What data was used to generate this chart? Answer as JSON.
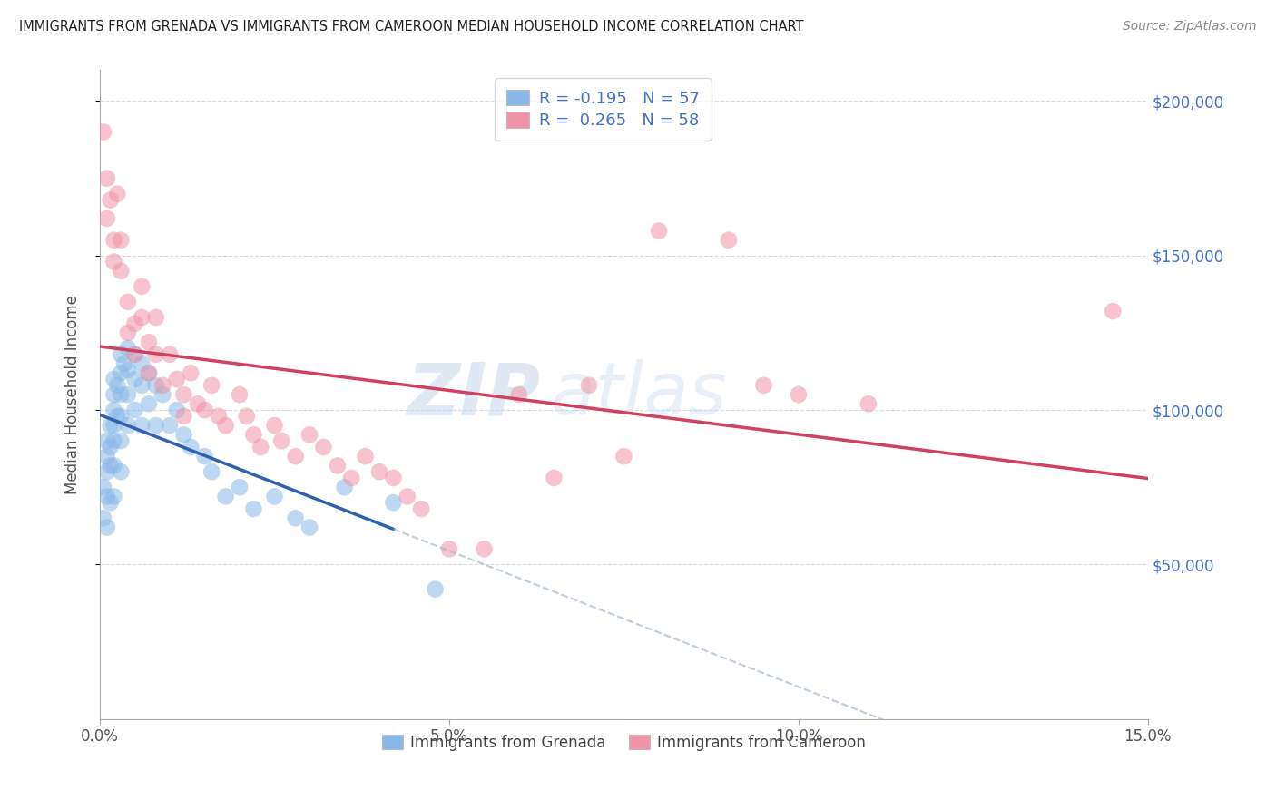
{
  "title": "IMMIGRANTS FROM GRENADA VS IMMIGRANTS FROM CAMEROON MEDIAN HOUSEHOLD INCOME CORRELATION CHART",
  "source": "Source: ZipAtlas.com",
  "ylabel": "Median Household Income",
  "xlim": [
    0,
    0.15
  ],
  "ylim": [
    0,
    210000
  ],
  "xticks": [
    0.0,
    0.05,
    0.1,
    0.15
  ],
  "xticklabels": [
    "0.0%",
    "5.0%",
    "10.0%",
    "15.0%"
  ],
  "yticks": [
    50000,
    100000,
    150000,
    200000
  ],
  "yticklabels": [
    "$50,000",
    "$100,000",
    "$150,000",
    "$200,000"
  ],
  "grenada_color": "#89b8e8",
  "cameroon_color": "#f093a8",
  "grenada_line_color": "#3060b0",
  "cameroon_line_color": "#d04060",
  "grenada_R": -0.195,
  "grenada_N": 57,
  "cameroon_R": 0.265,
  "cameroon_N": 58,
  "background_color": "#ffffff",
  "grid_color": "#cccccc",
  "title_color": "#222222",
  "axis_label_color": "#555555",
  "right_ytick_color": "#4472c4",
  "legend_R_color": "#4472c4",
  "watermark_color": "#c8d8ea",
  "grenada_x": [
    0.0005,
    0.0005,
    0.001,
    0.001,
    0.001,
    0.001,
    0.001,
    0.0015,
    0.0015,
    0.0015,
    0.0015,
    0.002,
    0.002,
    0.002,
    0.002,
    0.002,
    0.002,
    0.002,
    0.0025,
    0.0025,
    0.003,
    0.003,
    0.003,
    0.003,
    0.003,
    0.003,
    0.0035,
    0.004,
    0.004,
    0.004,
    0.004,
    0.005,
    0.005,
    0.005,
    0.006,
    0.006,
    0.006,
    0.007,
    0.007,
    0.008,
    0.008,
    0.009,
    0.01,
    0.011,
    0.012,
    0.013,
    0.015,
    0.016,
    0.018,
    0.02,
    0.022,
    0.025,
    0.028,
    0.03,
    0.035,
    0.042,
    0.048
  ],
  "grenada_y": [
    75000,
    65000,
    90000,
    85000,
    80000,
    72000,
    62000,
    95000,
    88000,
    82000,
    70000,
    110000,
    105000,
    100000,
    95000,
    90000,
    82000,
    72000,
    108000,
    98000,
    118000,
    112000,
    105000,
    98000,
    90000,
    80000,
    115000,
    120000,
    113000,
    105000,
    95000,
    118000,
    110000,
    100000,
    115000,
    108000,
    95000,
    112000,
    102000,
    108000,
    95000,
    105000,
    95000,
    100000,
    92000,
    88000,
    85000,
    80000,
    72000,
    75000,
    68000,
    72000,
    65000,
    62000,
    75000,
    70000,
    42000
  ],
  "cameroon_x": [
    0.0005,
    0.001,
    0.001,
    0.0015,
    0.002,
    0.002,
    0.0025,
    0.003,
    0.003,
    0.004,
    0.004,
    0.005,
    0.005,
    0.006,
    0.006,
    0.007,
    0.007,
    0.008,
    0.008,
    0.009,
    0.01,
    0.011,
    0.012,
    0.012,
    0.013,
    0.014,
    0.015,
    0.016,
    0.017,
    0.018,
    0.02,
    0.021,
    0.022,
    0.023,
    0.025,
    0.026,
    0.028,
    0.03,
    0.032,
    0.034,
    0.036,
    0.038,
    0.04,
    0.042,
    0.044,
    0.046,
    0.05,
    0.055,
    0.06,
    0.065,
    0.07,
    0.075,
    0.08,
    0.09,
    0.095,
    0.1,
    0.11,
    0.145
  ],
  "cameroon_y": [
    190000,
    175000,
    162000,
    168000,
    155000,
    148000,
    170000,
    155000,
    145000,
    135000,
    125000,
    128000,
    118000,
    140000,
    130000,
    122000,
    112000,
    130000,
    118000,
    108000,
    118000,
    110000,
    105000,
    98000,
    112000,
    102000,
    100000,
    108000,
    98000,
    95000,
    105000,
    98000,
    92000,
    88000,
    95000,
    90000,
    85000,
    92000,
    88000,
    82000,
    78000,
    85000,
    80000,
    78000,
    72000,
    68000,
    55000,
    55000,
    105000,
    78000,
    108000,
    85000,
    158000,
    155000,
    108000,
    105000,
    102000,
    132000
  ],
  "grenada_line_xmax_solid": 0.042,
  "grenada_line_xmax_dash": 0.15
}
